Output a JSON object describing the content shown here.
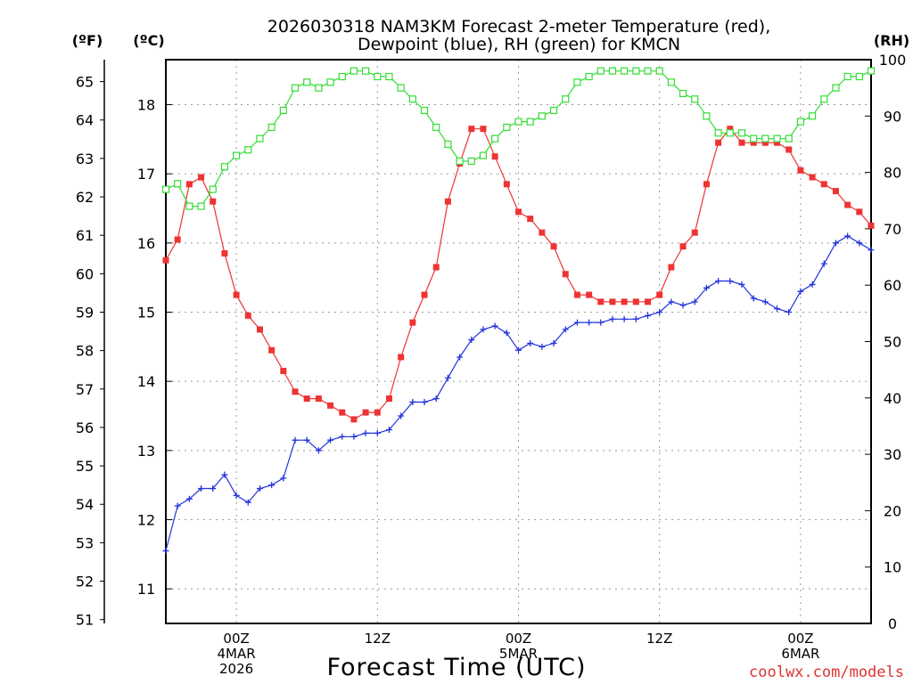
{
  "chart_data": {
    "type": "line",
    "title": "2026030318 NAM3KM Forecast 2-meter Temperature (red),",
    "subtitle": "Dewpoint (blue), RH (green) for KMCN",
    "xlabel": "Forecast Time (UTC)",
    "credit": "coolwx.com/models",
    "credit_color": "#dd3333",
    "units": {
      "fahrenheit": "(ºF)",
      "celsius": "(ºC)",
      "rh": "(RH)"
    },
    "x": [
      0,
      1,
      2,
      3,
      4,
      5,
      6,
      7,
      8,
      9,
      10,
      11,
      12,
      13,
      14,
      15,
      16,
      17,
      18,
      19,
      20,
      21,
      22,
      23,
      24,
      25,
      26,
      27,
      28,
      29,
      30,
      31,
      32,
      33,
      34,
      35,
      36,
      37,
      38,
      39,
      40,
      41,
      42,
      43,
      44,
      45,
      46,
      47,
      48,
      49,
      50,
      51,
      52,
      53,
      54,
      55,
      56,
      57,
      58,
      59,
      60
    ],
    "xlim": [
      0,
      60
    ],
    "x_ticks": [
      {
        "hour": 6,
        "lines": [
          "00Z",
          "4MAR",
          "2026"
        ]
      },
      {
        "hour": 18,
        "lines": [
          "12Z"
        ]
      },
      {
        "hour": 30,
        "lines": [
          "00Z",
          "5MAR"
        ]
      },
      {
        "hour": 42,
        "lines": [
          "12Z"
        ]
      },
      {
        "hour": 54,
        "lines": [
          "00Z",
          "6MAR"
        ]
      }
    ],
    "y_celsius": {
      "lim": [
        10.5,
        18.65
      ],
      "ticks": [
        "11",
        "12",
        "13",
        "14",
        "15",
        "16",
        "17",
        "18"
      ]
    },
    "y_fahrenheit": {
      "lim": [
        50.9,
        65.57
      ],
      "ticks": [
        "51",
        "52",
        "53",
        "54",
        "55",
        "56",
        "57",
        "58",
        "59",
        "60",
        "61",
        "62",
        "63",
        "64",
        "65"
      ]
    },
    "y_rh": {
      "lim": [
        0,
        100
      ],
      "ticks": [
        "0",
        "10",
        "20",
        "30",
        "40",
        "50",
        "60",
        "70",
        "80",
        "90",
        "100"
      ]
    },
    "grid": true,
    "series": [
      {
        "name": "Temperature",
        "axis": "celsius",
        "color": "#ee3333",
        "marker": "filled-square",
        "values": [
          15.75,
          16.05,
          16.85,
          16.95,
          16.6,
          15.85,
          15.25,
          14.95,
          14.75,
          14.45,
          14.15,
          13.85,
          13.75,
          13.75,
          13.65,
          13.55,
          13.45,
          13.55,
          13.55,
          13.75,
          14.35,
          14.85,
          15.25,
          15.65,
          16.6,
          17.15,
          17.65,
          17.65,
          17.25,
          16.85,
          16.45,
          16.35,
          16.15,
          15.95,
          15.55,
          15.25,
          15.25,
          15.15,
          15.15,
          15.15,
          15.15,
          15.15,
          15.25,
          15.65,
          15.95,
          16.15,
          16.85,
          17.45,
          17.65,
          17.45,
          17.45,
          17.45,
          17.45,
          17.35,
          17.05,
          16.95,
          16.85,
          16.75,
          16.55,
          16.45,
          16.25
        ]
      },
      {
        "name": "Dewpoint",
        "axis": "celsius",
        "color": "#2233dd",
        "marker": "plus",
        "values": [
          11.55,
          12.2,
          12.3,
          12.45,
          12.45,
          12.65,
          12.35,
          12.25,
          12.45,
          12.5,
          12.6,
          13.15,
          13.15,
          13.0,
          13.15,
          13.2,
          13.2,
          13.25,
          13.25,
          13.3,
          13.5,
          13.7,
          13.7,
          13.75,
          14.05,
          14.35,
          14.6,
          14.75,
          14.8,
          14.7,
          14.45,
          14.55,
          14.5,
          14.55,
          14.75,
          14.85,
          14.85,
          14.85,
          14.9,
          14.9,
          14.9,
          14.95,
          15.0,
          15.15,
          15.1,
          15.15,
          15.35,
          15.45,
          15.45,
          15.4,
          15.2,
          15.15,
          15.05,
          15.0,
          15.3,
          15.4,
          15.7,
          16.0,
          16.1,
          16.0,
          15.9
        ]
      },
      {
        "name": "RH",
        "axis": "rh",
        "color": "#33dd33",
        "marker": "open-square",
        "values": [
          77,
          78,
          74,
          74,
          77,
          81,
          83,
          84,
          86,
          88,
          91,
          95,
          96,
          95,
          96,
          97,
          98,
          98,
          97,
          97,
          95,
          93,
          91,
          88,
          85,
          82,
          82,
          83,
          86,
          88,
          89,
          89,
          90,
          91,
          93,
          96,
          97,
          98,
          98,
          98,
          98,
          98,
          98,
          96,
          94,
          93,
          90,
          87,
          87,
          87,
          86,
          86,
          86,
          86,
          89,
          90,
          93,
          95,
          97,
          97,
          98
        ]
      }
    ]
  }
}
